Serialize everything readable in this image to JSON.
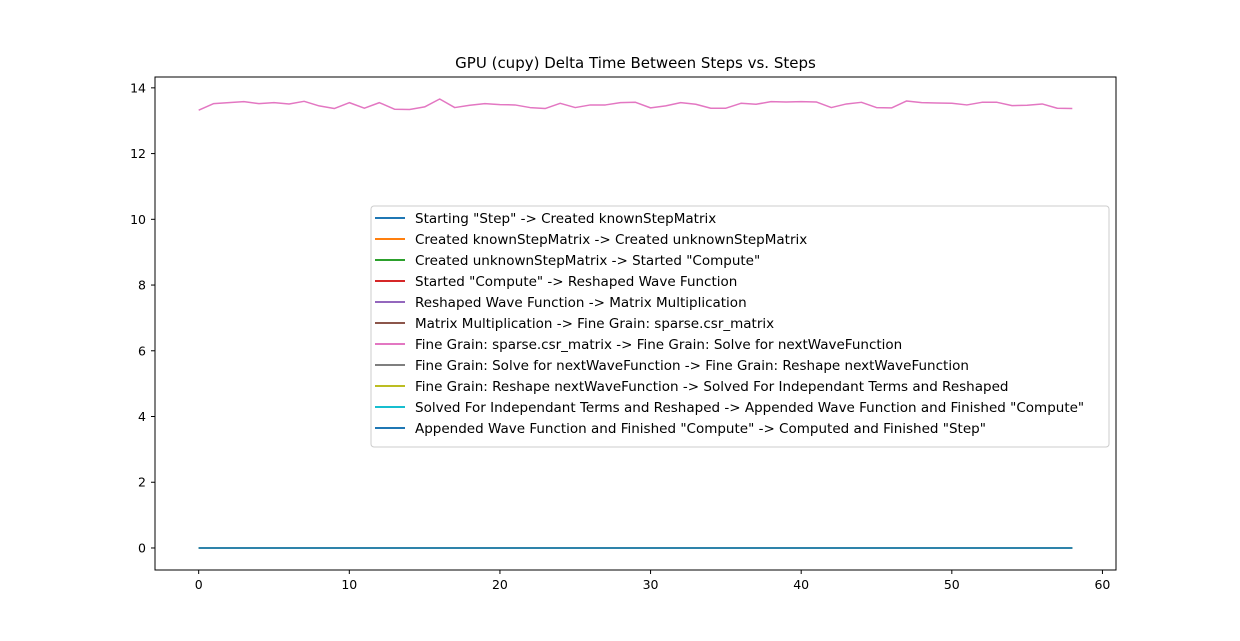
{
  "chart_data": {
    "type": "line",
    "title": "GPU (cupy) Delta Time Between Steps vs. Steps",
    "xlabel": "",
    "ylabel": "",
    "xlim": [
      -2.9,
      60.9
    ],
    "ylim": [
      -0.67,
      14.33
    ],
    "xticks": [
      0,
      10,
      20,
      30,
      40,
      50,
      60
    ],
    "yticks": [
      0,
      2,
      4,
      6,
      8,
      10,
      12,
      14
    ],
    "grid": false,
    "legend_position": "center-right",
    "x": [
      0,
      1,
      2,
      3,
      4,
      5,
      6,
      7,
      8,
      9,
      10,
      11,
      12,
      13,
      14,
      15,
      16,
      17,
      18,
      19,
      20,
      21,
      22,
      23,
      24,
      25,
      26,
      27,
      28,
      29,
      30,
      31,
      32,
      33,
      34,
      35,
      36,
      37,
      38,
      39,
      40,
      41,
      42,
      43,
      44,
      45,
      46,
      47,
      48,
      49,
      50,
      51,
      52,
      53,
      54,
      55,
      56,
      57,
      58
    ],
    "series": [
      {
        "name": "Starting \"Step\" -> Created knownStepMatrix",
        "color": "#1f77b4",
        "values": [
          0,
          0,
          0,
          0,
          0,
          0,
          0,
          0,
          0,
          0,
          0,
          0,
          0,
          0,
          0,
          0,
          0,
          0,
          0,
          0,
          0,
          0,
          0,
          0,
          0,
          0,
          0,
          0,
          0,
          0,
          0,
          0,
          0,
          0,
          0,
          0,
          0,
          0,
          0,
          0,
          0,
          0,
          0,
          0,
          0,
          0,
          0,
          0,
          0,
          0,
          0,
          0,
          0,
          0,
          0,
          0,
          0,
          0,
          0
        ]
      },
      {
        "name": "Created knownStepMatrix -> Created unknownStepMatrix",
        "color": "#ff7f0e",
        "values": [
          0,
          0,
          0,
          0,
          0,
          0,
          0,
          0,
          0,
          0,
          0,
          0,
          0,
          0,
          0,
          0,
          0,
          0,
          0,
          0,
          0,
          0,
          0,
          0,
          0,
          0,
          0,
          0,
          0,
          0,
          0,
          0,
          0,
          0,
          0,
          0,
          0,
          0,
          0,
          0,
          0,
          0,
          0,
          0,
          0,
          0,
          0,
          0,
          0,
          0,
          0,
          0,
          0,
          0,
          0,
          0,
          0,
          0,
          0
        ]
      },
      {
        "name": "Created unknownStepMatrix -> Started \"Compute\"",
        "color": "#2ca02c",
        "values": [
          0,
          0,
          0,
          0,
          0,
          0,
          0,
          0,
          0,
          0,
          0,
          0,
          0,
          0,
          0,
          0,
          0,
          0,
          0,
          0,
          0,
          0,
          0,
          0,
          0,
          0,
          0,
          0,
          0,
          0,
          0,
          0,
          0,
          0,
          0,
          0,
          0,
          0,
          0,
          0,
          0,
          0,
          0,
          0,
          0,
          0,
          0,
          0,
          0,
          0,
          0,
          0,
          0,
          0,
          0,
          0,
          0,
          0,
          0
        ]
      },
      {
        "name": "Started \"Compute\" -> Reshaped Wave Function",
        "color": "#d62728",
        "values": [
          0,
          0,
          0,
          0,
          0,
          0,
          0,
          0,
          0,
          0,
          0,
          0,
          0,
          0,
          0,
          0,
          0,
          0,
          0,
          0,
          0,
          0,
          0,
          0,
          0,
          0,
          0,
          0,
          0,
          0,
          0,
          0,
          0,
          0,
          0,
          0,
          0,
          0,
          0,
          0,
          0,
          0,
          0,
          0,
          0,
          0,
          0,
          0,
          0,
          0,
          0,
          0,
          0,
          0,
          0,
          0,
          0,
          0,
          0
        ]
      },
      {
        "name": "Reshaped Wave Function -> Matrix Multiplication",
        "color": "#9467bd",
        "values": [
          0,
          0,
          0,
          0,
          0,
          0,
          0,
          0,
          0,
          0,
          0,
          0,
          0,
          0,
          0,
          0,
          0,
          0,
          0,
          0,
          0,
          0,
          0,
          0,
          0,
          0,
          0,
          0,
          0,
          0,
          0,
          0,
          0,
          0,
          0,
          0,
          0,
          0,
          0,
          0,
          0,
          0,
          0,
          0,
          0,
          0,
          0,
          0,
          0,
          0,
          0,
          0,
          0,
          0,
          0,
          0,
          0,
          0,
          0
        ]
      },
      {
        "name": "Matrix Multiplication -> Fine Grain: sparse.csr_matrix",
        "color": "#8c564b",
        "values": [
          0,
          0,
          0,
          0,
          0,
          0,
          0,
          0,
          0,
          0,
          0,
          0,
          0,
          0,
          0,
          0,
          0,
          0,
          0,
          0,
          0,
          0,
          0,
          0,
          0,
          0,
          0,
          0,
          0,
          0,
          0,
          0,
          0,
          0,
          0,
          0,
          0,
          0,
          0,
          0,
          0,
          0,
          0,
          0,
          0,
          0,
          0,
          0,
          0,
          0,
          0,
          0,
          0,
          0,
          0,
          0,
          0,
          0,
          0
        ]
      },
      {
        "name": "Fine Grain: sparse.csr_matrix -> Fine Grain: Solve for nextWaveFunction",
        "color": "#e377c2",
        "values": [
          13.32,
          13.52,
          13.55,
          13.58,
          13.52,
          13.55,
          13.51,
          13.59,
          13.45,
          13.37,
          13.55,
          13.38,
          13.55,
          13.35,
          13.34,
          13.42,
          13.66,
          13.4,
          13.47,
          13.52,
          13.49,
          13.48,
          13.4,
          13.37,
          13.53,
          13.4,
          13.48,
          13.48,
          13.55,
          13.56,
          13.39,
          13.45,
          13.55,
          13.5,
          13.38,
          13.38,
          13.53,
          13.5,
          13.58,
          13.57,
          13.58,
          13.57,
          13.4,
          13.51,
          13.56,
          13.4,
          13.39,
          13.6,
          13.55,
          13.54,
          13.53,
          13.48,
          13.56,
          13.56,
          13.46,
          13.47,
          13.51,
          13.38,
          13.37
        ]
      },
      {
        "name": "Fine Grain: Solve for nextWaveFunction -> Fine Grain: Reshape nextWaveFunction",
        "color": "#7f7f7f",
        "values": [
          0,
          0,
          0,
          0,
          0,
          0,
          0,
          0,
          0,
          0,
          0,
          0,
          0,
          0,
          0,
          0,
          0,
          0,
          0,
          0,
          0,
          0,
          0,
          0,
          0,
          0,
          0,
          0,
          0,
          0,
          0,
          0,
          0,
          0,
          0,
          0,
          0,
          0,
          0,
          0,
          0,
          0,
          0,
          0,
          0,
          0,
          0,
          0,
          0,
          0,
          0,
          0,
          0,
          0,
          0,
          0,
          0,
          0,
          0
        ]
      },
      {
        "name": "Fine Grain: Reshape nextWaveFunction -> Solved For Independant Terms and Reshaped",
        "color": "#bcbd22",
        "values": [
          0,
          0,
          0,
          0,
          0,
          0,
          0,
          0,
          0,
          0,
          0,
          0,
          0,
          0,
          0,
          0,
          0,
          0,
          0,
          0,
          0,
          0,
          0,
          0,
          0,
          0,
          0,
          0,
          0,
          0,
          0,
          0,
          0,
          0,
          0,
          0,
          0,
          0,
          0,
          0,
          0,
          0,
          0,
          0,
          0,
          0,
          0,
          0,
          0,
          0,
          0,
          0,
          0,
          0,
          0,
          0,
          0,
          0,
          0
        ]
      },
      {
        "name": "Solved For Independant Terms and Reshaped -> Appended Wave Function and Finished \"Compute\"",
        "color": "#17becf",
        "values": [
          0,
          0,
          0,
          0,
          0,
          0,
          0,
          0,
          0,
          0,
          0,
          0,
          0,
          0,
          0,
          0,
          0,
          0,
          0,
          0,
          0,
          0,
          0,
          0,
          0,
          0,
          0,
          0,
          0,
          0,
          0,
          0,
          0,
          0,
          0,
          0,
          0,
          0,
          0,
          0,
          0,
          0,
          0,
          0,
          0,
          0,
          0,
          0,
          0,
          0,
          0,
          0,
          0,
          0,
          0,
          0,
          0,
          0,
          0
        ]
      },
      {
        "name": "Appended Wave Function and Finished \"Compute\" -> Computed and Finished \"Step\"",
        "color": "#1f77b4",
        "values": [
          0,
          0,
          0,
          0,
          0,
          0,
          0,
          0,
          0,
          0,
          0,
          0,
          0,
          0,
          0,
          0,
          0,
          0,
          0,
          0,
          0,
          0,
          0,
          0,
          0,
          0,
          0,
          0,
          0,
          0,
          0,
          0,
          0,
          0,
          0,
          0,
          0,
          0,
          0,
          0,
          0,
          0,
          0,
          0,
          0,
          0,
          0,
          0,
          0,
          0,
          0,
          0,
          0,
          0,
          0,
          0,
          0,
          0,
          0
        ]
      }
    ]
  }
}
